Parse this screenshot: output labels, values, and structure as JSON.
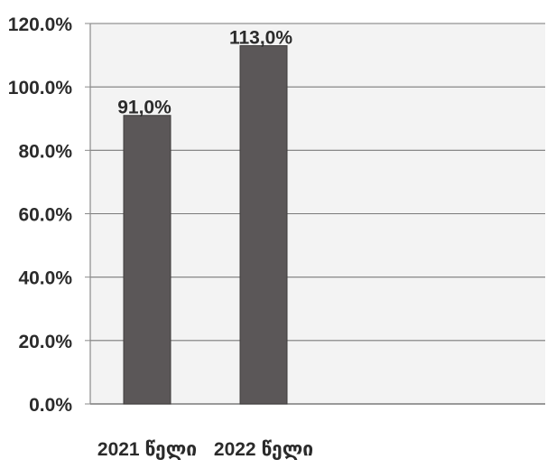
{
  "chart_data": {
    "type": "bar",
    "title": "",
    "xlabel": "",
    "ylabel": "",
    "categories": [
      "2021 წელი",
      "2022 წელი"
    ],
    "values": [
      91.0,
      113.0
    ],
    "value_labels": [
      "91,0%",
      "113,0%"
    ],
    "ylim": [
      0,
      120
    ],
    "yticks": [
      0,
      20,
      40,
      60,
      80,
      100,
      120
    ],
    "ytick_labels": [
      "0.0%",
      "20.0%",
      "40.0%",
      "60.0%",
      "80.0%",
      "100.0%",
      "120.0%"
    ],
    "grid": true,
    "legend": false,
    "colors": {
      "bar": "#5b5758",
      "bar_edge": "#3f3c3d",
      "plot_background": "#f3f3f3",
      "gridline": "#7a7a7a",
      "axis": "#8a8a8a",
      "text": "#2b2b2b"
    }
  }
}
